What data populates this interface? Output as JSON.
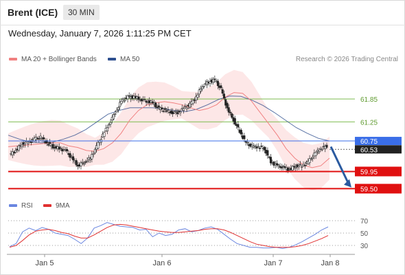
{
  "header": {
    "instrument": "Brent (ICE)",
    "timeframe": "30 MIN",
    "datetime": "Wednesday, January 7, 2026 1:11:25 PM CET",
    "copyright": "Research © 2026 Trading Central"
  },
  "colors": {
    "bollinger_fill": "#fde3e3",
    "ma20": "#f08080",
    "ma50": "#2e4f8f",
    "resistance": "#7dbb4f",
    "support": "#e01010",
    "last_price": "#3a6ee8",
    "arrow": "#2a5aa0",
    "rsi": "#6a86e0",
    "rsi_ma": "#e03030"
  },
  "legend": {
    "ma20_label": "MA 20 + Bollinger Bands",
    "ma50_label": "MA 50",
    "rsi_label": "RSI",
    "rsi_ma_label": "9MA"
  },
  "levels": {
    "resistance": [
      {
        "label": "61.85",
        "value": 61.85
      },
      {
        "label": "61.25",
        "value": 61.25
      }
    ],
    "current": {
      "label": "60.75",
      "value": 60.75
    },
    "last": {
      "label": "60.53",
      "value": 60.53
    },
    "support": [
      {
        "label": "59.95",
        "value": 59.95
      },
      {
        "label": "59.50",
        "value": 59.5
      }
    ]
  },
  "chart_data": [
    {
      "type": "candlestick",
      "title": "Brent (ICE) 30 MIN",
      "x_ticks": [
        "Jan 5",
        "Jan 6",
        "Jan 7",
        "Jan 8"
      ],
      "ohlc_close_path": [
        60.38,
        60.5,
        60.68,
        60.72,
        60.8,
        60.84,
        60.7,
        60.6,
        60.55,
        60.5,
        60.3,
        60.1,
        60.2,
        60.3,
        60.6,
        60.9,
        61.2,
        61.5,
        61.8,
        61.9,
        61.9,
        61.85,
        61.8,
        61.75,
        61.6,
        61.55,
        61.5,
        61.5,
        61.6,
        61.7,
        61.9,
        62.2,
        62.3,
        62.35,
        62.1,
        61.6,
        61.3,
        61.0,
        60.7,
        60.6,
        60.6,
        60.55,
        60.2,
        60.1,
        60.05,
        60.0,
        60.1,
        60.1,
        60.2,
        60.4,
        60.55,
        60.62
      ],
      "ma_20": [
        60.6,
        60.62,
        60.64,
        60.66,
        60.68,
        60.7,
        60.7,
        60.62,
        60.58,
        60.5,
        60.48,
        60.55,
        60.7,
        60.95,
        61.3,
        61.55,
        61.7,
        61.75,
        61.78,
        61.75,
        61.7,
        61.62,
        61.55,
        61.6,
        61.7,
        61.9,
        62.02,
        62.0,
        61.8,
        61.5,
        61.2,
        60.9,
        60.55,
        60.3,
        60.12,
        60.05,
        60.1,
        60.3
      ],
      "ma_50": [
        60.9,
        60.8,
        60.72,
        60.7,
        60.72,
        60.8,
        60.9,
        61.05,
        61.25,
        61.45,
        61.55,
        61.62,
        61.62,
        61.62,
        61.6,
        61.55,
        61.52,
        61.58,
        61.7,
        61.84,
        61.93,
        61.92,
        61.82,
        61.68,
        61.5,
        61.3,
        61.1,
        60.95,
        60.82,
        60.75
      ],
      "levels": {
        "resistance": [
          61.85,
          61.25
        ],
        "support": [
          59.95,
          59.5
        ],
        "last": 60.53,
        "current": 60.75
      },
      "projection": {
        "from": 60.6,
        "to": 59.55,
        "direction": "down"
      }
    },
    {
      "type": "line",
      "title": "RSI",
      "y_ticks": [
        70,
        50,
        30
      ],
      "series": [
        {
          "name": "RSI",
          "values": [
            28,
            33,
            52,
            58,
            54,
            59,
            56,
            50,
            48,
            46,
            40,
            33,
            42,
            58,
            62,
            67,
            64,
            61,
            60,
            59,
            55,
            56,
            44,
            50,
            46,
            48,
            55,
            57,
            52,
            54,
            58,
            60,
            56,
            48,
            40,
            33,
            30,
            27,
            27,
            26,
            26,
            27,
            25,
            27,
            31,
            36,
            42,
            48,
            55,
            60
          ]
        },
        {
          "name": "9MA",
          "values": [
            27,
            30,
            38,
            47,
            53,
            55,
            56,
            54,
            51,
            49,
            45,
            42,
            42,
            47,
            53,
            59,
            63,
            64,
            63,
            61,
            59,
            57,
            55,
            53,
            52,
            51,
            51,
            52,
            53,
            54,
            56,
            57,
            57,
            55,
            51,
            46,
            41,
            36,
            32,
            30,
            28,
            27,
            27,
            27,
            28,
            30,
            33,
            37,
            41,
            46
          ]
        }
      ]
    }
  ]
}
